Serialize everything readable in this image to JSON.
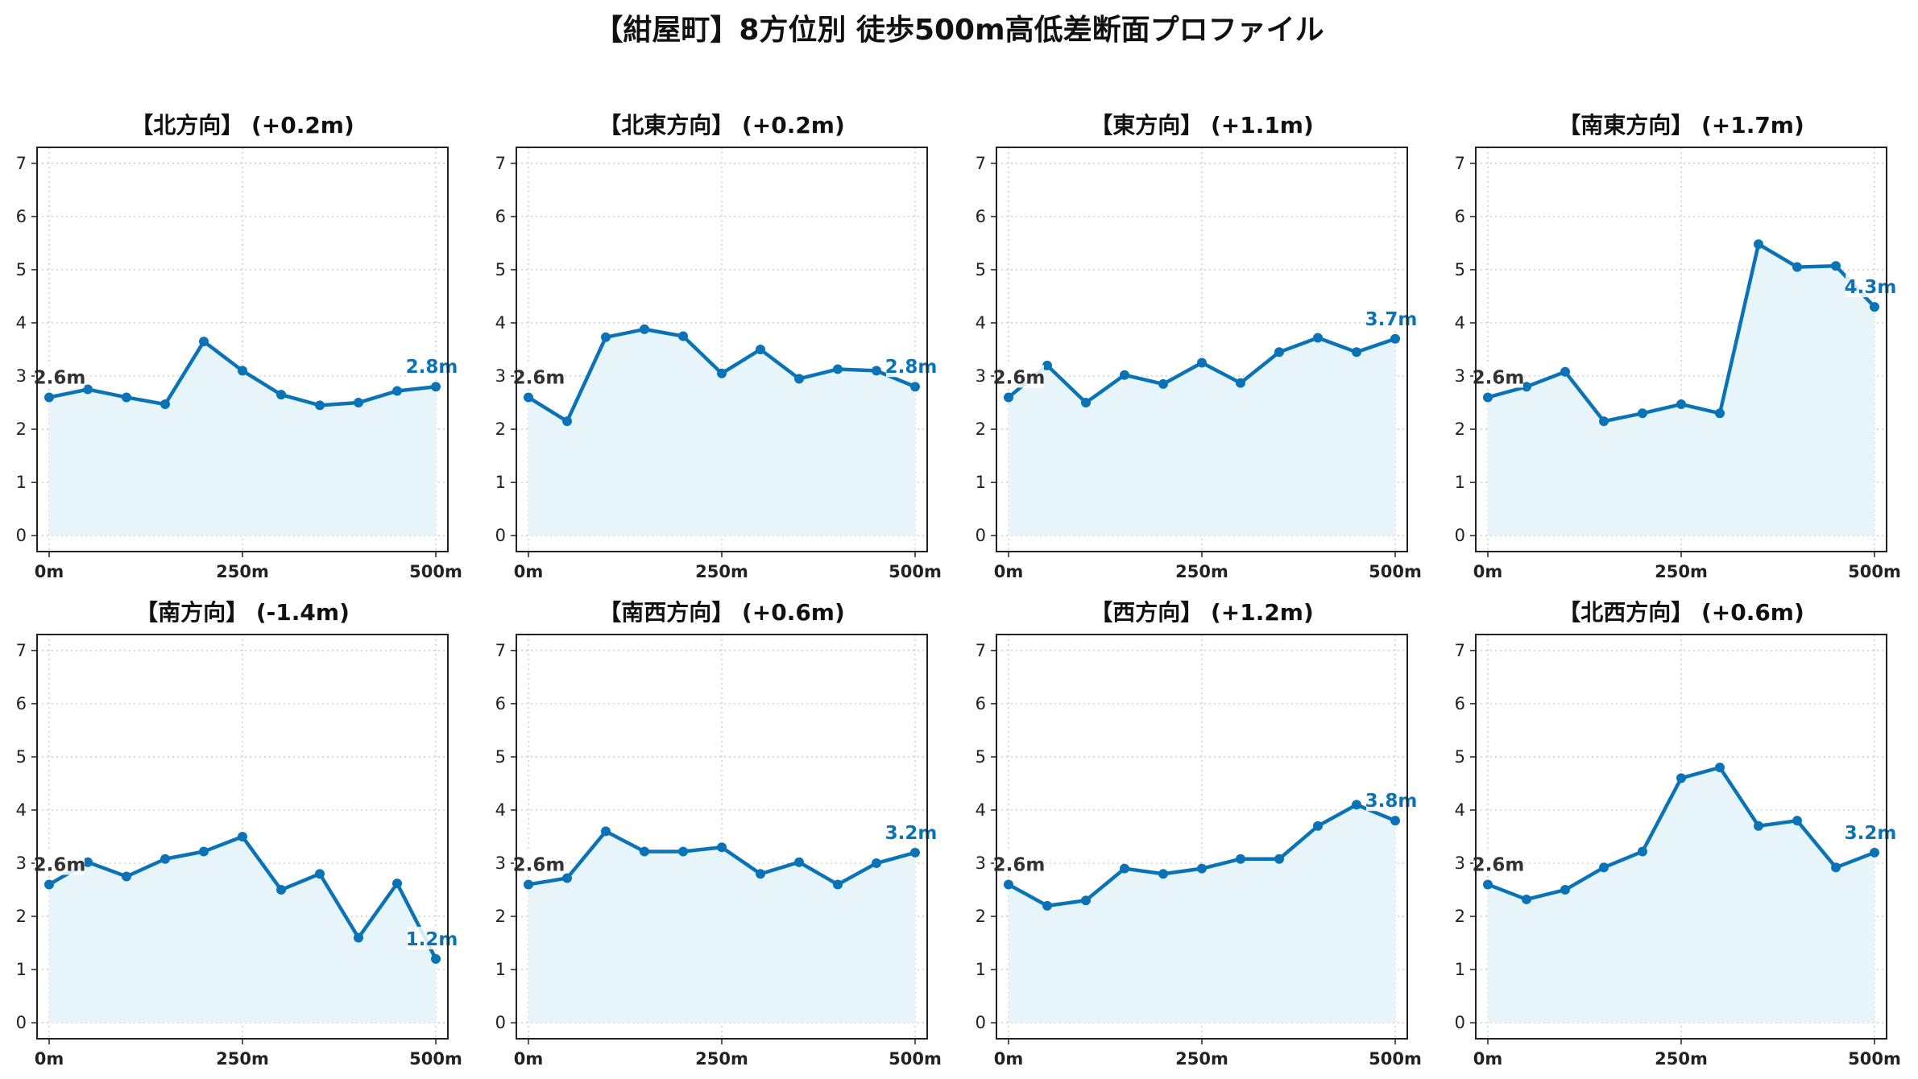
{
  "figure": {
    "title": "【紺屋町】8方位別 徒歩500m高低差断面プロファイル"
  },
  "colors": {
    "line": "#0a73b7",
    "fill": "#e7f5fb",
    "grid": "#c8c8c8",
    "start_label": "#333333",
    "end_label": "#0a73b7"
  },
  "chart_data": [
    {
      "type": "line",
      "title": "【北方向】 (+0.2m)",
      "categories": [
        "0m",
        "250m",
        "500m"
      ],
      "x": [
        0,
        50,
        100,
        150,
        200,
        250,
        300,
        350,
        400,
        450,
        500
      ],
      "values": [
        2.6,
        2.75,
        2.6,
        2.47,
        3.65,
        3.1,
        2.65,
        2.45,
        2.5,
        2.72,
        2.8
      ],
      "ylim": [
        -0.3,
        7.3
      ],
      "yticks": [
        0,
        1,
        2,
        3,
        4,
        5,
        6,
        7
      ],
      "grid": true,
      "start_label": "2.6m",
      "end_label": "2.8m"
    },
    {
      "type": "line",
      "title": "【北東方向】 (+0.2m)",
      "categories": [
        "0m",
        "250m",
        "500m"
      ],
      "x": [
        0,
        50,
        100,
        150,
        200,
        250,
        300,
        350,
        400,
        450,
        500
      ],
      "values": [
        2.6,
        2.15,
        3.73,
        3.88,
        3.75,
        3.05,
        3.5,
        2.95,
        3.13,
        3.1,
        2.8
      ],
      "ylim": [
        -0.3,
        7.3
      ],
      "yticks": [
        0,
        1,
        2,
        3,
        4,
        5,
        6,
        7
      ],
      "grid": true,
      "start_label": "2.6m",
      "end_label": "2.8m"
    },
    {
      "type": "line",
      "title": "【東方向】 (+1.1m)",
      "categories": [
        "0m",
        "250m",
        "500m"
      ],
      "x": [
        0,
        50,
        100,
        150,
        200,
        250,
        300,
        350,
        400,
        450,
        500
      ],
      "values": [
        2.6,
        3.2,
        2.5,
        3.02,
        2.85,
        3.25,
        2.87,
        3.45,
        3.72,
        3.45,
        3.7
      ],
      "ylim": [
        -0.3,
        7.3
      ],
      "yticks": [
        0,
        1,
        2,
        3,
        4,
        5,
        6,
        7
      ],
      "grid": true,
      "start_label": "2.6m",
      "end_label": "3.7m"
    },
    {
      "type": "line",
      "title": "【南東方向】 (+1.7m)",
      "categories": [
        "0m",
        "250m",
        "500m"
      ],
      "x": [
        0,
        50,
        100,
        150,
        200,
        250,
        300,
        350,
        400,
        450,
        500
      ],
      "values": [
        2.6,
        2.8,
        3.08,
        2.15,
        2.3,
        2.47,
        2.3,
        5.48,
        5.05,
        5.07,
        4.3
      ],
      "ylim": [
        -0.3,
        7.3
      ],
      "yticks": [
        0,
        1,
        2,
        3,
        4,
        5,
        6,
        7
      ],
      "grid": true,
      "start_label": "2.6m",
      "end_label": "4.3m"
    },
    {
      "type": "line",
      "title": "【南方向】 (-1.4m)",
      "categories": [
        "0m",
        "250m",
        "500m"
      ],
      "x": [
        0,
        50,
        100,
        150,
        200,
        250,
        300,
        350,
        400,
        450,
        500
      ],
      "values": [
        2.6,
        3.02,
        2.75,
        3.08,
        3.22,
        3.5,
        2.5,
        2.8,
        1.6,
        2.62,
        1.2
      ],
      "ylim": [
        -0.3,
        7.3
      ],
      "yticks": [
        0,
        1,
        2,
        3,
        4,
        5,
        6,
        7
      ],
      "grid": true,
      "start_label": "2.6m",
      "end_label": "1.2m"
    },
    {
      "type": "line",
      "title": "【南西方向】 (+0.6m)",
      "categories": [
        "0m",
        "250m",
        "500m"
      ],
      "x": [
        0,
        50,
        100,
        150,
        200,
        250,
        300,
        350,
        400,
        450,
        500
      ],
      "values": [
        2.6,
        2.72,
        3.6,
        3.22,
        3.22,
        3.3,
        2.8,
        3.02,
        2.6,
        3.0,
        3.2
      ],
      "ylim": [
        -0.3,
        7.3
      ],
      "yticks": [
        0,
        1,
        2,
        3,
        4,
        5,
        6,
        7
      ],
      "grid": true,
      "start_label": "2.6m",
      "end_label": "3.2m"
    },
    {
      "type": "line",
      "title": "【西方向】 (+1.2m)",
      "categories": [
        "0m",
        "250m",
        "500m"
      ],
      "x": [
        0,
        50,
        100,
        150,
        200,
        250,
        300,
        350,
        400,
        450,
        500
      ],
      "values": [
        2.6,
        2.2,
        2.3,
        2.9,
        2.8,
        2.9,
        3.08,
        3.08,
        3.7,
        4.1,
        3.8
      ],
      "ylim": [
        -0.3,
        7.3
      ],
      "yticks": [
        0,
        1,
        2,
        3,
        4,
        5,
        6,
        7
      ],
      "grid": true,
      "start_label": "2.6m",
      "end_label": "3.8m"
    },
    {
      "type": "line",
      "title": "【北西方向】 (+0.6m)",
      "categories": [
        "0m",
        "250m",
        "500m"
      ],
      "x": [
        0,
        50,
        100,
        150,
        200,
        250,
        300,
        350,
        400,
        450,
        500
      ],
      "values": [
        2.6,
        2.32,
        2.5,
        2.92,
        3.22,
        4.6,
        4.8,
        3.7,
        3.8,
        2.92,
        3.2
      ],
      "ylim": [
        -0.3,
        7.3
      ],
      "yticks": [
        0,
        1,
        2,
        3,
        4,
        5,
        6,
        7
      ],
      "grid": true,
      "start_label": "2.6m",
      "end_label": "3.2m"
    }
  ]
}
